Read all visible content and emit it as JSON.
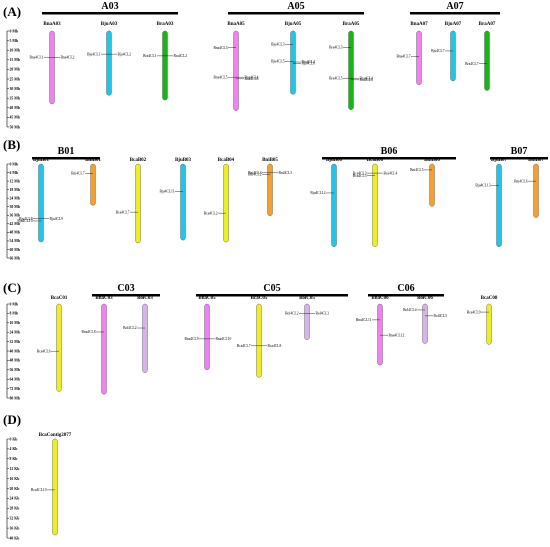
{
  "colors": {
    "pink": "#ee82ee",
    "cyan": "#22c4e8",
    "green": "#18b418",
    "yellow": "#eeee22",
    "orange": "#f4a030",
    "lavender": "#d7b4e6"
  },
  "panels": [
    {
      "label": "(A)",
      "axis": [
        "0 Mb",
        "5 Mb",
        "10 Mb",
        "15 Mb",
        "20 Mb",
        "25 Mb",
        "30 Mb",
        "35 Mb",
        "40 Mb",
        "45 Mb",
        "50 Mb"
      ],
      "groups": [
        {
          "name": "A03",
          "chromosomes": [
            {
              "name": "BnaA03",
              "color": "pink",
              "len": 0.76,
              "genes": [
                {
                  "name": "Bna4CL1",
                  "pos": 0.36,
                  "side": "left"
                },
                {
                  "name": "Bna4CL2",
                  "pos": 0.36,
                  "side": "right"
                }
              ]
            },
            {
              "name": "BjuA03",
              "color": "cyan",
              "len": 0.67,
              "genes": [
                {
                  "name": "Bju4CL1",
                  "pos": 0.36,
                  "side": "left"
                },
                {
                  "name": "Bju4CL2",
                  "pos": 0.36,
                  "side": "right"
                }
              ]
            },
            {
              "name": "BraA03",
              "color": "green",
              "len": 0.72,
              "genes": [
                {
                  "name": "Bra4CL1",
                  "pos": 0.36,
                  "side": "left"
                },
                {
                  "name": "Bra4CL2",
                  "pos": 0.36,
                  "side": "right"
                }
              ]
            }
          ]
        },
        {
          "name": "A05",
          "chromosomes": [
            {
              "name": "BnaA05",
              "color": "pink",
              "len": 0.83,
              "genes": [
                {
                  "name": "Bna4CL3",
                  "pos": 0.21,
                  "side": "left"
                },
                {
                  "name": "Bna4CL5",
                  "pos": 0.58,
                  "side": "left"
                },
                {
                  "name": "Bna4CL4",
                  "pos": 0.58,
                  "side": "right"
                },
                {
                  "name": "Bna4CL6",
                  "pos": 0.6,
                  "side": "right"
                }
              ]
            },
            {
              "name": "BjuA05",
              "color": "cyan",
              "len": 0.66,
              "genes": [
                {
                  "name": "Bju4CL3",
                  "pos": 0.21,
                  "side": "left"
                },
                {
                  "name": "Bju4CL5",
                  "pos": 0.48,
                  "side": "left"
                },
                {
                  "name": "Bju4CL4",
                  "pos": 0.49,
                  "side": "right"
                },
                {
                  "name": "Bju4CL6",
                  "pos": 0.51,
                  "side": "right"
                }
              ]
            },
            {
              "name": "BraA05",
              "color": "green",
              "len": 0.82,
              "genes": [
                {
                  "name": "Bra4CL3",
                  "pos": 0.21,
                  "side": "left"
                },
                {
                  "name": "Bra4CL5",
                  "pos": 0.6,
                  "side": "left"
                },
                {
                  "name": "Bra4CL4",
                  "pos": 0.6,
                  "side": "right"
                },
                {
                  "name": "Bra4CL6",
                  "pos": 0.62,
                  "side": "right"
                }
              ]
            }
          ]
        },
        {
          "name": "A07",
          "chromosomes": [
            {
              "name": "BnaA07",
              "color": "pink",
              "len": 0.56,
              "genes": [
                {
                  "name": "Bna4CL7",
                  "pos": 0.47,
                  "side": "left"
                }
              ]
            },
            {
              "name": "BjuA07",
              "color": "cyan",
              "len": 0.52,
              "genes": [
                {
                  "name": "Bju4CL7",
                  "pos": 0.4,
                  "side": "left"
                }
              ]
            },
            {
              "name": "BraA07",
              "color": "green",
              "len": 0.62,
              "genes": [
                {
                  "name": "Bra4CL7",
                  "pos": 0.55,
                  "side": "left"
                }
              ]
            }
          ]
        }
      ]
    },
    {
      "label": "(B)",
      "axis": [
        "0 Mb",
        "6 Mb",
        "12 Mb",
        "18 Mb",
        "24 Mb",
        "30 Mb",
        "36 Mb",
        "42 Mb",
        "48 Mb",
        "54 Mb",
        "60 Mb",
        "66 Mb"
      ],
      "groups": [
        {
          "name": "B01",
          "chromosomes": [
            {
              "name": "BjuB01",
              "color": "cyan",
              "len": 0.83,
              "genes": [
                {
                  "name": "Bju4CL8",
                  "pos": 0.7,
                  "side": "left"
                },
                {
                  "name": "Bju4CL10",
                  "pos": 0.73,
                  "side": "left"
                },
                {
                  "name": "Bju4CL9",
                  "pos": 0.7,
                  "side": "right"
                }
              ]
            },
            {
              "name": "BniB01",
              "color": "orange",
              "len": 0.44,
              "genes": [
                {
                  "name": "Bni4CL7",
                  "pos": 0.23,
                  "side": "left"
                }
              ]
            }
          ]
        },
        {
          "name": "",
          "chromosomes": [
            {
              "name": "BcaB02",
              "color": "yellow",
              "len": 0.84,
              "genes": [
                {
                  "name": "Bca4CL7",
                  "pos": 0.61,
                  "side": "left"
                }
              ]
            },
            {
              "name": "BjuB03",
              "color": "cyan",
              "len": 0.81,
              "genes": [
                {
                  "name": "Bju4CL11",
                  "pos": 0.36,
                  "side": "left"
                }
              ]
            },
            {
              "name": "BcaB04",
              "color": "yellow",
              "len": 0.83,
              "genes": [
                {
                  "name": "Bca4CL2",
                  "pos": 0.63,
                  "side": "left"
                }
              ]
            },
            {
              "name": "BniB05",
              "color": "orange",
              "len": 0.55,
              "genes": [
                {
                  "name": "Bni4CL4",
                  "pos": 0.17,
                  "side": "left"
                },
                {
                  "name": "Bni4CL2",
                  "pos": 0.2,
                  "side": "left"
                },
                {
                  "name": "Bni4CL3",
                  "pos": 0.17,
                  "side": "right"
                }
              ]
            }
          ]
        },
        {
          "name": "B06",
          "chromosomes": [
            {
              "name": "BjuB06",
              "color": "cyan",
              "len": 0.88,
              "genes": [
                {
                  "name": "Bju4CL12",
                  "pos": 0.35,
                  "side": "left"
                }
              ]
            },
            {
              "name": "BcaB06",
              "color": "yellow",
              "len": 0.88,
              "genes": [
                {
                  "name": "Bca4CL3",
                  "pos": 0.11,
                  "side": "left"
                },
                {
                  "name": "Bca4CL5",
                  "pos": 0.14,
                  "side": "left"
                },
                {
                  "name": "Bca4CL4",
                  "pos": 0.11,
                  "side": "right"
                }
              ]
            },
            {
              "name": "BniB06",
              "color": "orange",
              "len": 0.45,
              "genes": [
                {
                  "name": "Bni4CL5",
                  "pos": 0.14,
                  "side": "left"
                }
              ]
            }
          ]
        },
        {
          "name": "B07",
          "chromosomes": [
            {
              "name": "BjuB07",
              "color": "cyan",
              "len": 0.88,
              "genes": [
                {
                  "name": "Bju4CL13",
                  "pos": 0.26,
                  "side": "left"
                }
              ]
            },
            {
              "name": "BniB07",
              "color": "orange",
              "len": 0.57,
              "genes": [
                {
                  "name": "Bni4CL6",
                  "pos": 0.32,
                  "side": "left"
                }
              ]
            }
          ]
        }
      ]
    },
    {
      "label": "(C)",
      "axis": [
        "0 Mb",
        "8 Mb",
        "16 Mb",
        "24 Mb",
        "32 Mb",
        "40 Mb",
        "48 Mb",
        "56 Mb",
        "64 Mb",
        "72 Mb",
        "80 Mb"
      ],
      "groups": [
        {
          "name": "",
          "chromosomes": [
            {
              "name": "BcaC01",
              "color": "yellow",
              "len": 0.93,
              "genes": [
                {
                  "name": "Bca4CL6",
                  "pos": 0.54,
                  "side": "left"
                }
              ]
            }
          ]
        },
        {
          "name": "C03",
          "chromosomes": [
            {
              "name": "BnaC03",
              "color": "pink",
              "len": 0.96,
              "genes": [
                {
                  "name": "Bna4CL8",
                  "pos": 0.31,
                  "side": "left"
                }
              ]
            },
            {
              "name": "BolC03",
              "color": "lavender",
              "len": 0.73,
              "genes": [
                {
                  "name": "Bol4CL2",
                  "pos": 0.35,
                  "side": "left"
                }
              ]
            }
          ]
        },
        {
          "name": "C05",
          "chromosomes": [
            {
              "name": "BnaC05",
              "color": "pink",
              "len": 0.7,
              "genes": [
                {
                  "name": "Bna4CL9",
                  "pos": 0.53,
                  "side": "left"
                },
                {
                  "name": "Bna4CL10",
                  "pos": 0.53,
                  "side": "right"
                }
              ]
            },
            {
              "name": "BcaC05",
              "color": "yellow",
              "len": 0.78,
              "genes": [
                {
                  "name": "Bca4CL7",
                  "pos": 0.57,
                  "side": "left"
                },
                {
                  "name": "Bca4CL8",
                  "pos": 0.57,
                  "side": "right"
                }
              ]
            },
            {
              "name": "BolC05",
              "color": "lavender",
              "len": 0.38,
              "genes": [
                {
                  "name": "Bol4CL2",
                  "pos": 0.26,
                  "side": "left"
                },
                {
                  "name": "Bol4CL3",
                  "pos": 0.26,
                  "side": "right"
                }
              ]
            }
          ]
        },
        {
          "name": "C06",
          "chromosomes": [
            {
              "name": "BnaC06",
              "color": "pink",
              "len": 0.65,
              "genes": [
                {
                  "name": "Bna4CL11",
                  "pos": 0.26,
                  "side": "left"
                },
                {
                  "name": "Bna4CL12",
                  "pos": 0.51,
                  "side": "right"
                }
              ]
            },
            {
              "name": "BolC06",
              "color": "lavender",
              "len": 0.42,
              "genes": [
                {
                  "name": "Bol4CL4",
                  "pos": 0.15,
                  "side": "left"
                },
                {
                  "name": "Bol4CL5",
                  "pos": 0.3,
                  "side": "right"
                }
              ]
            }
          ]
        },
        {
          "name": "",
          "chromosomes": [
            {
              "name": "BcaC08",
              "color": "yellow",
              "len": 0.43,
              "genes": [
                {
                  "name": "Bca4CL9",
                  "pos": 0.2,
                  "side": "left"
                }
              ]
            }
          ]
        }
      ]
    },
    {
      "label": "(D)",
      "axis": [
        "0 Kb",
        "4 Kb",
        "8 Kb",
        "12 Kb",
        "16 Kb",
        "20 Kb",
        "24 Kb",
        "28 Kb",
        "32 Kb",
        "36 Kb",
        "40 Kb"
      ],
      "groups": [
        {
          "name": "",
          "chromosomes": [
            {
              "name": "BcaContig2077",
              "color": "yellow",
              "len": 0.97,
              "genes": [
                {
                  "name": "Bca4CL10",
                  "pos": 0.53,
                  "side": "left"
                }
              ]
            }
          ]
        }
      ]
    }
  ]
}
